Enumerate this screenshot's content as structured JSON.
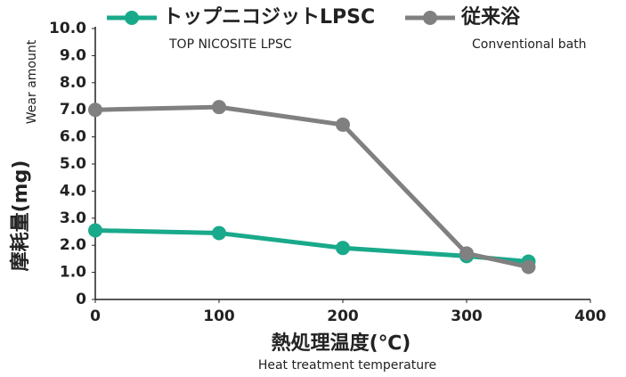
{
  "chart_data": {
    "type": "line",
    "x_label": "熱処理温度(℃)",
    "x_label_en": "Heat treatment temperature",
    "y_label": "摩耗量(mg)",
    "y_label_en": "Wear amount",
    "x": [
      0,
      100,
      200,
      300,
      350
    ],
    "series": [
      {
        "name": "トップニコジットLPSC",
        "subname": "TOP NICOSITE LPSC",
        "color": "#19a98b",
        "values": [
          2.55,
          2.45,
          1.9,
          1.6,
          1.4
        ]
      },
      {
        "name": "従来浴",
        "subname": "Conventional bath",
        "color": "#808080",
        "values": [
          7.0,
          7.1,
          6.45,
          1.7,
          1.2
        ]
      }
    ],
    "xlim": [
      0,
      400
    ],
    "xticks": [
      0,
      100,
      200,
      300,
      400
    ],
    "ylim": [
      0,
      10
    ],
    "yticks": [
      0,
      {
        "value": 1,
        "label": "1.0"
      },
      {
        "value": 2,
        "label": "2.0"
      },
      {
        "value": 3,
        "label": "3.0"
      },
      {
        "value": 4,
        "label": "4.0"
      },
      {
        "value": 5,
        "label": "5.0"
      },
      {
        "value": 6,
        "label": "6.0"
      },
      {
        "value": 7,
        "label": "7.0"
      },
      {
        "value": 8,
        "label": "8.0"
      },
      {
        "value": 9,
        "label": "9.0"
      },
      {
        "value": 10,
        "label": "10.0"
      }
    ],
    "grid": false
  }
}
